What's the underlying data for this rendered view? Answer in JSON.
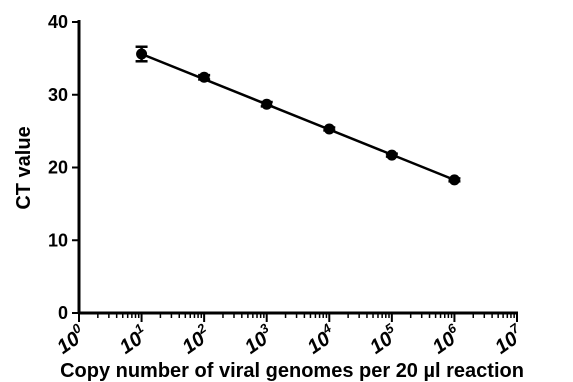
{
  "chart_data": {
    "type": "line",
    "xlabel": "Copy number of viral genomes per 20 µl reaction",
    "ylabel": "CT value",
    "x_scale": "log",
    "xlim": [
      1,
      10000000
    ],
    "ylim": [
      0,
      40
    ],
    "y_ticks": [
      0,
      10,
      20,
      30,
      40
    ],
    "x_ticks": [
      {
        "value": 1,
        "base": "10",
        "exp": "0"
      },
      {
        "value": 10,
        "base": "10",
        "exp": "1"
      },
      {
        "value": 100,
        "base": "10",
        "exp": "2"
      },
      {
        "value": 1000,
        "base": "10",
        "exp": "3"
      },
      {
        "value": 10000,
        "base": "10",
        "exp": "4"
      },
      {
        "value": 100000,
        "base": "10",
        "exp": "5"
      },
      {
        "value": 1000000,
        "base": "10",
        "exp": "6"
      },
      {
        "value": 10000000,
        "base": "10",
        "exp": "7"
      }
    ],
    "series": [
      {
        "points": [
          {
            "x": 10,
            "y": 35.6,
            "err": 1.0
          },
          {
            "x": 100,
            "y": 32.4,
            "err": 0.3
          },
          {
            "x": 1000,
            "y": 28.7,
            "err": 0.3
          },
          {
            "x": 10000,
            "y": 25.3,
            "err": 0.2
          },
          {
            "x": 100000,
            "y": 21.7,
            "err": 0.2
          },
          {
            "x": 1000000,
            "y": 18.3,
            "err": 0.2
          }
        ],
        "fit": [
          [
            10,
            35.6
          ],
          [
            1000000,
            18.3
          ]
        ]
      }
    ],
    "grid": false
  }
}
